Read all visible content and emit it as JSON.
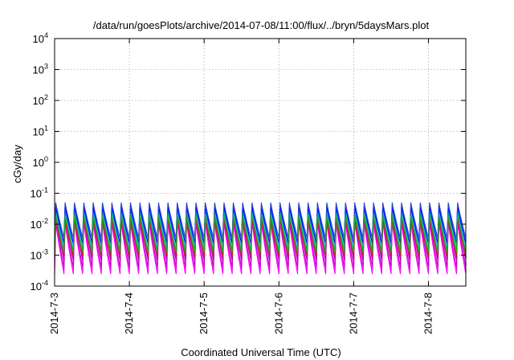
{
  "chart_data": {
    "type": "line",
    "title": "/data/run/goesPlots/archive/2014-07-08/11:00/flux/../bryn/5daysMars.plot",
    "xlabel": "Coordinated Universal Time (UTC)",
    "ylabel": "cGy/day",
    "yscale": "log",
    "ylim": [
      0.0001,
      10000
    ],
    "xlim": [
      "2014-07-03",
      "2014-07-08 12:00"
    ],
    "grid": true,
    "legend": "none",
    "x_ticks": [
      "2014-7-3",
      "2014-7-4",
      "2014-7-5",
      "2014-7-6",
      "2014-7-7",
      "2014-7-8"
    ],
    "y_ticks": [
      {
        "value": 0.0001,
        "base": "10",
        "exp": "-4"
      },
      {
        "value": 0.001,
        "base": "10",
        "exp": "-3"
      },
      {
        "value": 0.01,
        "base": "10",
        "exp": "-2"
      },
      {
        "value": 0.1,
        "base": "10",
        "exp": "-1"
      },
      {
        "value": 1,
        "base": "10",
        "exp": "0"
      },
      {
        "value": 10,
        "base": "10",
        "exp": "1"
      },
      {
        "value": 100,
        "base": "10",
        "exp": "2"
      },
      {
        "value": 1000,
        "base": "10",
        "exp": "3"
      },
      {
        "value": 10000,
        "base": "10",
        "exp": "4"
      }
    ],
    "oscillation": {
      "cycles_per_day": 8,
      "start_phase_hours": 0
    },
    "series": [
      {
        "color": "#ff00ff",
        "peak": 0.012,
        "trough": 0.00025
      },
      {
        "color": "#cc00cc",
        "peak": 0.016,
        "trough": 0.0004
      },
      {
        "color": "#9400d3",
        "peak": 0.022,
        "trough": 0.0007
      },
      {
        "color": "#00aaaa",
        "peak": 0.028,
        "trough": 0.0011
      },
      {
        "color": "#00cccc",
        "peak": 0.032,
        "trough": 0.0016
      },
      {
        "color": "#0000ff",
        "peak": 0.04,
        "trough": 0.0024
      },
      {
        "color": "#2244dd",
        "peak": 0.05,
        "trough": 0.0035
      },
      {
        "color": "#cc2222",
        "peak": 0.015,
        "trough": 0.0009
      },
      {
        "color": "#22aa22",
        "peak": 0.02,
        "trough": 0.0013
      }
    ]
  }
}
